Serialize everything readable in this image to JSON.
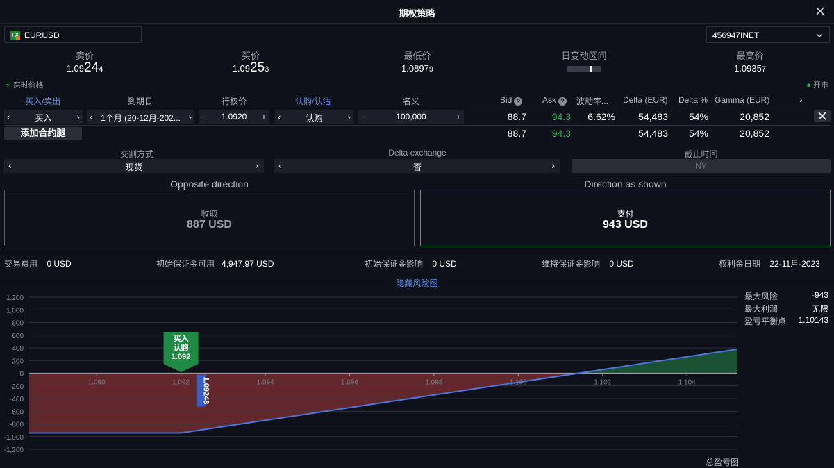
{
  "window": {
    "title": "期权策略"
  },
  "symbol": {
    "name": "EURUSD",
    "icon_text": "FX"
  },
  "account": {
    "id": "456947INET"
  },
  "quotes": {
    "sell_label": "卖价",
    "sell_prefix": "1.09",
    "sell_big": "24",
    "sell_small": "4",
    "buy_label": "买价",
    "buy_prefix": "1.09",
    "buy_big": "25",
    "buy_small": "3",
    "low_label": "最低价",
    "low_main": "1.0897",
    "low_small": "9",
    "range_label": "日变动区间",
    "range_position": 0.72,
    "high_label": "最高价",
    "high_main": "1.0935",
    "high_small": "7"
  },
  "status": {
    "live_label": "实时价格",
    "market_label": "开市"
  },
  "legs_header": {
    "side": "买入/卖出",
    "expiry": "到期日",
    "strike": "行权价",
    "type": "认购/认沽",
    "notional": "名义",
    "bid": "Bid",
    "ask": "Ask",
    "vol": "波动率...",
    "delta_eur": "Delta (EUR)",
    "delta_pct": "Delta %",
    "gamma": "Gamma (EUR)"
  },
  "leg": {
    "side": "买入",
    "expiry": "1个月 (20-12月-202...",
    "strike": "1.0920",
    "type": "认购",
    "notional": "100,000",
    "bid": "88.7",
    "ask": "94.3",
    "vol": "6.62%",
    "delta_eur": "54,483",
    "delta_pct": "54%",
    "gamma": "20,852"
  },
  "totals": {
    "add_leg": "添加合约腿",
    "bid": "88.7",
    "ask": "94.3",
    "delta_eur": "54,483",
    "delta_pct": "54%",
    "gamma": "20,852"
  },
  "settings": {
    "settlement_label": "交割方式",
    "settlement_value": "现货",
    "delta_exchange_label": "Delta exchange",
    "delta_exchange_value": "否",
    "cutoff_label": "截止时间",
    "cutoff_value": "NY"
  },
  "direction": {
    "opposite_label": "Opposite direction",
    "opposite_action": "收取",
    "opposite_amount": "887 USD",
    "shown_label": "Direction as shown",
    "shown_action": "支付",
    "shown_amount": "943 USD"
  },
  "fees": {
    "fee_label": "交易费用",
    "fee_value": "0 USD",
    "im_avail_label": "初始保证金可用",
    "im_avail_value": "4,947.97 USD",
    "im_impact_label": "初始保证金影响",
    "im_impact_value": "0 USD",
    "mm_impact_label": "维持保证金影响",
    "mm_impact_value": "0 USD",
    "premium_date_label": "权利金日期",
    "premium_date_value": "22-11月-2023"
  },
  "risk": {
    "toggle_label": "隐藏风险图",
    "max_risk_label": "最大风险",
    "max_risk_value": "-943",
    "max_profit_label": "最大利润",
    "max_profit_value": "无限",
    "breakeven_label": "盈亏平衡点",
    "breakeven_value": "1.10143",
    "total_pl_label": "总盈亏图"
  },
  "chart_data": {
    "type": "line",
    "title": "",
    "xlabel": "",
    "ylabel": "",
    "x_ticks": [
      "1.090",
      "1.092",
      "1.094",
      "1.096",
      "1.098",
      "1.100",
      "1.102",
      "1.104"
    ],
    "y_ticks": [
      "1,200",
      "1,000",
      "800",
      "600",
      "400",
      "200",
      "0",
      "-200",
      "-400",
      "-600",
      "-800",
      "-1,000",
      "-1,200"
    ],
    "xlim": [
      1.0884,
      1.1052
    ],
    "ylim": [
      -1200,
      1200
    ],
    "grid": true,
    "series": [
      {
        "x": [
          1.0884,
          1.092,
          1.10143,
          1.1052
        ],
        "y": [
          -943,
          -943,
          0,
          380
        ]
      }
    ],
    "marker": {
      "x": 1.092,
      "line1": "买入",
      "line2": "认购",
      "line3": "1.092"
    },
    "current_price": {
      "x": 1.09248,
      "label": "1.09248"
    },
    "colors": {
      "loss": "#6b2a2e",
      "profit": "#1d5a36",
      "line": "#4a78e0"
    }
  }
}
